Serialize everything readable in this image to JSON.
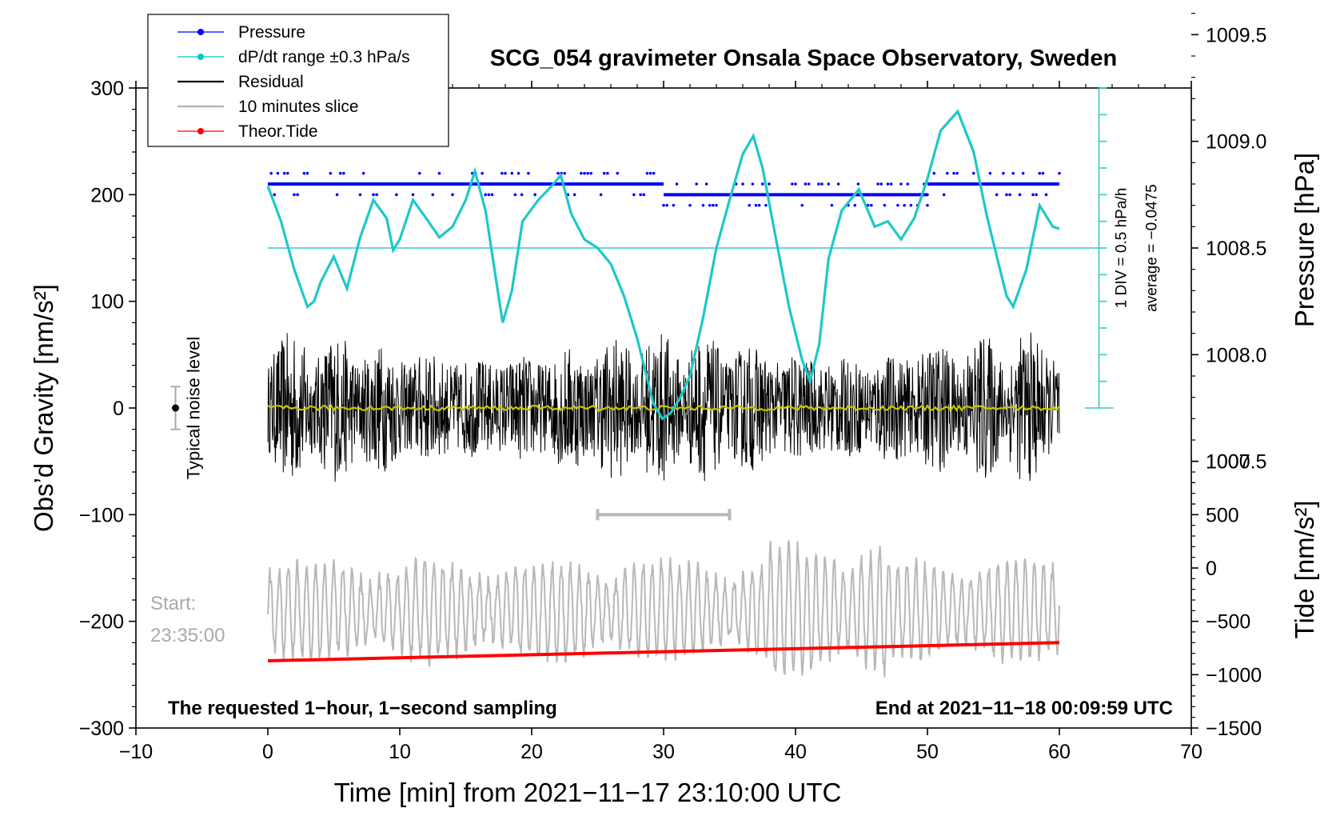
{
  "chart_data": {
    "type": "line",
    "title": "SCG_054 gravimeter Onsala Space Observatory, Sweden",
    "xlabel": "Time [min] from 2021−11−17 23:10:00 UTC",
    "ylabel_left": "Obs’d Gravity [nm/s²]",
    "ylabel_right_top": "Pressure [hPa]",
    "ylabel_right_bottom": "Tide [nm/s²]",
    "xlim": [
      -10,
      70
    ],
    "ylim": [
      -300,
      300
    ],
    "x_ticks": [
      -10,
      0,
      10,
      20,
      30,
      40,
      50,
      60,
      70
    ],
    "x_tick_labels": [
      "−10",
      "0",
      "10",
      "20",
      "30",
      "40",
      "50",
      "60",
      "70"
    ],
    "y_ticks": [
      300,
      200,
      100,
      0,
      -100,
      -200,
      -300
    ],
    "y_tick_labels": [
      "300",
      "200",
      "100",
      "0",
      "−100",
      "−200",
      "−300"
    ],
    "pressure_axis": {
      "ticks": [
        1009.5,
        1009.0,
        1008.5,
        1008.0,
        1007.5
      ],
      "labels": [
        "1009.5",
        "1009.0",
        "1008.5",
        "1008.0",
        "1007.5"
      ],
      "gravity_at_1008_5": 150,
      "gravity_per_hpa": 200
    },
    "tide_axis": {
      "ticks": [
        1000,
        500,
        0,
        -500,
        -1000,
        -1500
      ],
      "labels": [
        "1000",
        "500",
        "0",
        "−500",
        "−1000",
        "−1500"
      ],
      "gravity_at_zero": -150,
      "gravity_per_unit": 0.1
    },
    "legend": {
      "position": "top-left",
      "entries": [
        {
          "label": "Pressure",
          "color": "#0000ff",
          "marker": true
        },
        {
          "label": "dP/dt range ±0.3 hPa/s",
          "color": "#00c8c8",
          "marker": true
        },
        {
          "label": "Residual",
          "color": "#000000",
          "marker": false
        },
        {
          "label": "10 minutes slice",
          "color": "#b8b8b8",
          "marker": false
        },
        {
          "label": "Theor.Tide",
          "color": "#ff0000",
          "marker": true
        }
      ]
    },
    "annotations": {
      "noise_label": "Typical noise level",
      "noise_value": 0,
      "noise_range": [
        -20,
        20
      ],
      "noise_x": -7,
      "side_line1": "1 DIV = 0.5 hPa/h",
      "side_line2": "average = −0.0475",
      "side_scale_x": 63,
      "side_scale_range": [
        0,
        300
      ],
      "side_scale_tick_step": 25,
      "start_label": "Start:",
      "start_time": "23:35:00",
      "slice_range": [
        25,
        35
      ],
      "slice_y": -100,
      "bottom_left_note": "The requested 1−hour, 1−second sampling",
      "bottom_right_note": "End at 2021−11−18 00:09:59 UTC"
    },
    "series": [
      {
        "name": "dP/dt range ±0.3 hPa/s",
        "color": "#1ec8c8",
        "reference_y": 150,
        "x": [
          0,
          1,
          2,
          3,
          3.5,
          4,
          5,
          6,
          7,
          8,
          9,
          9.5,
          10,
          11,
          12,
          13,
          14,
          15,
          15.7,
          16.5,
          17.3,
          17.8,
          18.5,
          19.3,
          20.5,
          21.5,
          22.2,
          23,
          24,
          25,
          26,
          27,
          28,
          28.7,
          29.2,
          29.9,
          30.5,
          31.2,
          32,
          33,
          34,
          35,
          36,
          36.8,
          37.5,
          38.5,
          39.5,
          40.5,
          41.1,
          41.8,
          42.5,
          43.5,
          44.8,
          46,
          47,
          48,
          49,
          50,
          51,
          52.3,
          53.5,
          54.5,
          55.3,
          56,
          56.5,
          57.5,
          58.5,
          59.5,
          60
        ],
        "y": [
          208,
          175,
          130,
          95,
          100,
          118,
          142,
          112,
          160,
          195,
          178,
          148,
          158,
          195,
          178,
          160,
          170,
          195,
          222,
          185,
          120,
          80,
          110,
          175,
          195,
          208,
          218,
          182,
          158,
          150,
          135,
          105,
          65,
          30,
          5,
          -10,
          -5,
          8,
          30,
          85,
          150,
          195,
          238,
          255,
          225,
          160,
          95,
          45,
          25,
          60,
          140,
          185,
          205,
          170,
          175,
          158,
          178,
          215,
          260,
          278,
          240,
          180,
          140,
          105,
          95,
          130,
          190,
          170,
          168
        ]
      },
      {
        "name": "Theor.Tide",
        "color": "#ff0000",
        "x": [
          0,
          60
        ],
        "y": [
          -237,
          -220
        ]
      }
    ],
    "pressure_levels": [
      {
        "x": [
          0,
          30.0
        ],
        "y": 210
      },
      {
        "x": [
          30.0,
          50.0
        ],
        "y": 200
      },
      {
        "x": [
          50.0,
          60
        ],
        "y": 210
      }
    ],
    "residual": {
      "x_range": [
        0,
        60
      ],
      "amplitude": 45,
      "color": "#000000"
    },
    "mean_trace": {
      "x_range": [
        0,
        60
      ],
      "y": 0,
      "color": "#c8c800"
    },
    "slice_trace": {
      "x_range": [
        0,
        60
      ],
      "center": -190,
      "amplitude": 45,
      "color": "#b8b8b8"
    }
  }
}
